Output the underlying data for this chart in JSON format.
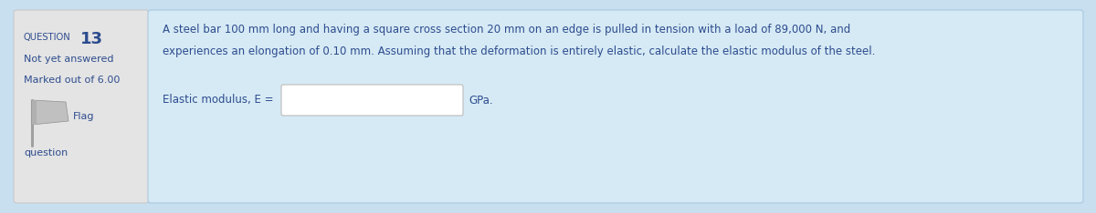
{
  "outer_bg": "#c8dff0",
  "left_panel_bg": "#e4e4e4",
  "right_panel_bg": "#d6eaf5",
  "question_label": "QUESTION",
  "question_number": "13",
  "not_yet_answered": "Not yet answered",
  "marked_out": "Marked out of 6.00",
  "flag_text": "Flag",
  "question_text": "question",
  "main_text_line1": "A steel bar 100 mm long and having a square cross section 20 mm on an edge is pulled in tension with a load of 89,000 N, and",
  "main_text_line2": "experiences an elongation of 0.10 mm. Assuming that the deformation is entirely elastic, calculate the elastic modulus of the steel.",
  "answer_label": "Elastic modulus, E =",
  "answer_suffix": "GPa.",
  "text_color": "#2d4c8e",
  "figsize": [
    12.0,
    2.34
  ],
  "dpi": 100
}
